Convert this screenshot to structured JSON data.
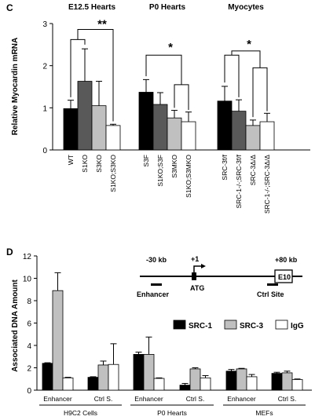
{
  "chart_data": [
    {
      "panel": "C",
      "type": "bar",
      "ylabel": "Relative Myocardin mRNA",
      "ylim": [
        0,
        3
      ],
      "yticks": [
        0,
        1,
        2,
        3
      ],
      "groups": [
        {
          "title": "E12.5 Hearts",
          "categories": [
            "WT",
            "S1KO",
            "S3KO",
            "S1KO;S3KO"
          ],
          "values": [
            0.98,
            1.63,
            1.05,
            0.58
          ],
          "errors": [
            0.2,
            0.77,
            0.58,
            0.03
          ],
          "colors": [
            "#000000",
            "#595959",
            "#c0c0c0",
            "#ffffff"
          ],
          "significance": "**"
        },
        {
          "title": "P0 Hearts",
          "categories": [
            "S3F",
            "S1KO;S3F",
            "S3MKO",
            "S1KO;S3MKO"
          ],
          "values": [
            1.37,
            1.08,
            0.76,
            0.67
          ],
          "errors": [
            0.3,
            0.28,
            0.18,
            0.23
          ],
          "colors": [
            "#000000",
            "#595959",
            "#c0c0c0",
            "#ffffff"
          ],
          "significance": "*"
        },
        {
          "title": "Myocytes",
          "categories": [
            "SRC-3f/f",
            "SRC-1-/-;SRC-3f/f",
            "SRC-3Δ/Δ",
            "SRC-1-/-;SRC-3Δ/Δ"
          ],
          "values": [
            1.16,
            0.92,
            0.58,
            0.67
          ],
          "errors": [
            0.35,
            0.27,
            0.13,
            0.2
          ],
          "colors": [
            "#000000",
            "#595959",
            "#c0c0c0",
            "#ffffff"
          ],
          "significance": "*"
        }
      ]
    },
    {
      "panel": "D",
      "type": "bar",
      "ylabel": "Associated DNA Amount",
      "ylim": [
        0,
        12
      ],
      "yticks": [
        0,
        2,
        4,
        6,
        8,
        10,
        12
      ],
      "series": [
        {
          "name": "SRC-1",
          "color": "#000000"
        },
        {
          "name": "SRC-3",
          "color": "#c0c0c0"
        },
        {
          "name": "IgG",
          "color": "#ffffff"
        }
      ],
      "legend_position": "right",
      "groups": [
        {
          "title": "H9C2 Cells",
          "sites": [
            {
              "label": "Enhancer",
              "values": [
                2.4,
                8.9,
                1.1
              ],
              "errors": [
                0.05,
                1.6,
                0.05
              ]
            },
            {
              "label": "Ctrl S.",
              "values": [
                1.15,
                2.25,
                2.3
              ],
              "errors": [
                0.05,
                0.35,
                1.85
              ]
            }
          ]
        },
        {
          "title": "P0 Hearts",
          "sites": [
            {
              "label": "Enhancer",
              "values": [
                3.2,
                3.2,
                1.05
              ],
              "errors": [
                0.2,
                1.55,
                0.05
              ]
            },
            {
              "label": "Ctrl S.",
              "values": [
                0.45,
                1.9,
                1.1
              ],
              "errors": [
                0.15,
                0.1,
                0.2
              ]
            }
          ]
        },
        {
          "title": "MEFs",
          "sites": [
            {
              "label": "Enhancer",
              "values": [
                1.7,
                1.9,
                1.2
              ],
              "errors": [
                0.15,
                0.05,
                0.2
              ]
            },
            {
              "label": "Ctrl S.",
              "values": [
                1.5,
                1.55,
                0.95
              ],
              "errors": [
                0.1,
                0.15,
                0.05
              ]
            }
          ]
        }
      ],
      "inset": {
        "labels": [
          "-30 kb",
          "+1",
          "+80 kb",
          "Enhancer",
          "ATG",
          "Ctrl Site",
          "E10"
        ]
      }
    }
  ]
}
